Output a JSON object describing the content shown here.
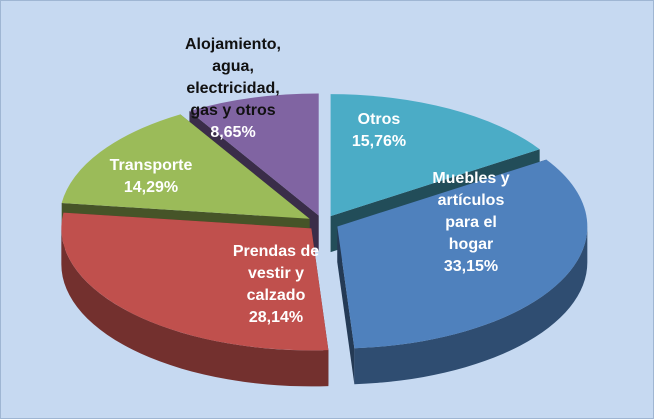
{
  "chart_data": {
    "type": "pie",
    "categories": [
      "Otros",
      "Muebles y artículos para el hogar",
      "Prendas de vestir y calzado",
      "Transporte",
      "Alojamiento, agua, electricidad, gas y otros"
    ],
    "values": [
      15.76,
      33.15,
      28.14,
      14.29,
      8.65
    ],
    "value_labels": [
      "15,76%",
      "33,15%",
      "28,14%",
      "14,29%",
      "8,65%"
    ],
    "colors": [
      "#4bacc6",
      "#4f81bd",
      "#c0504d",
      "#9bbb59",
      "#8064a2"
    ]
  }
}
